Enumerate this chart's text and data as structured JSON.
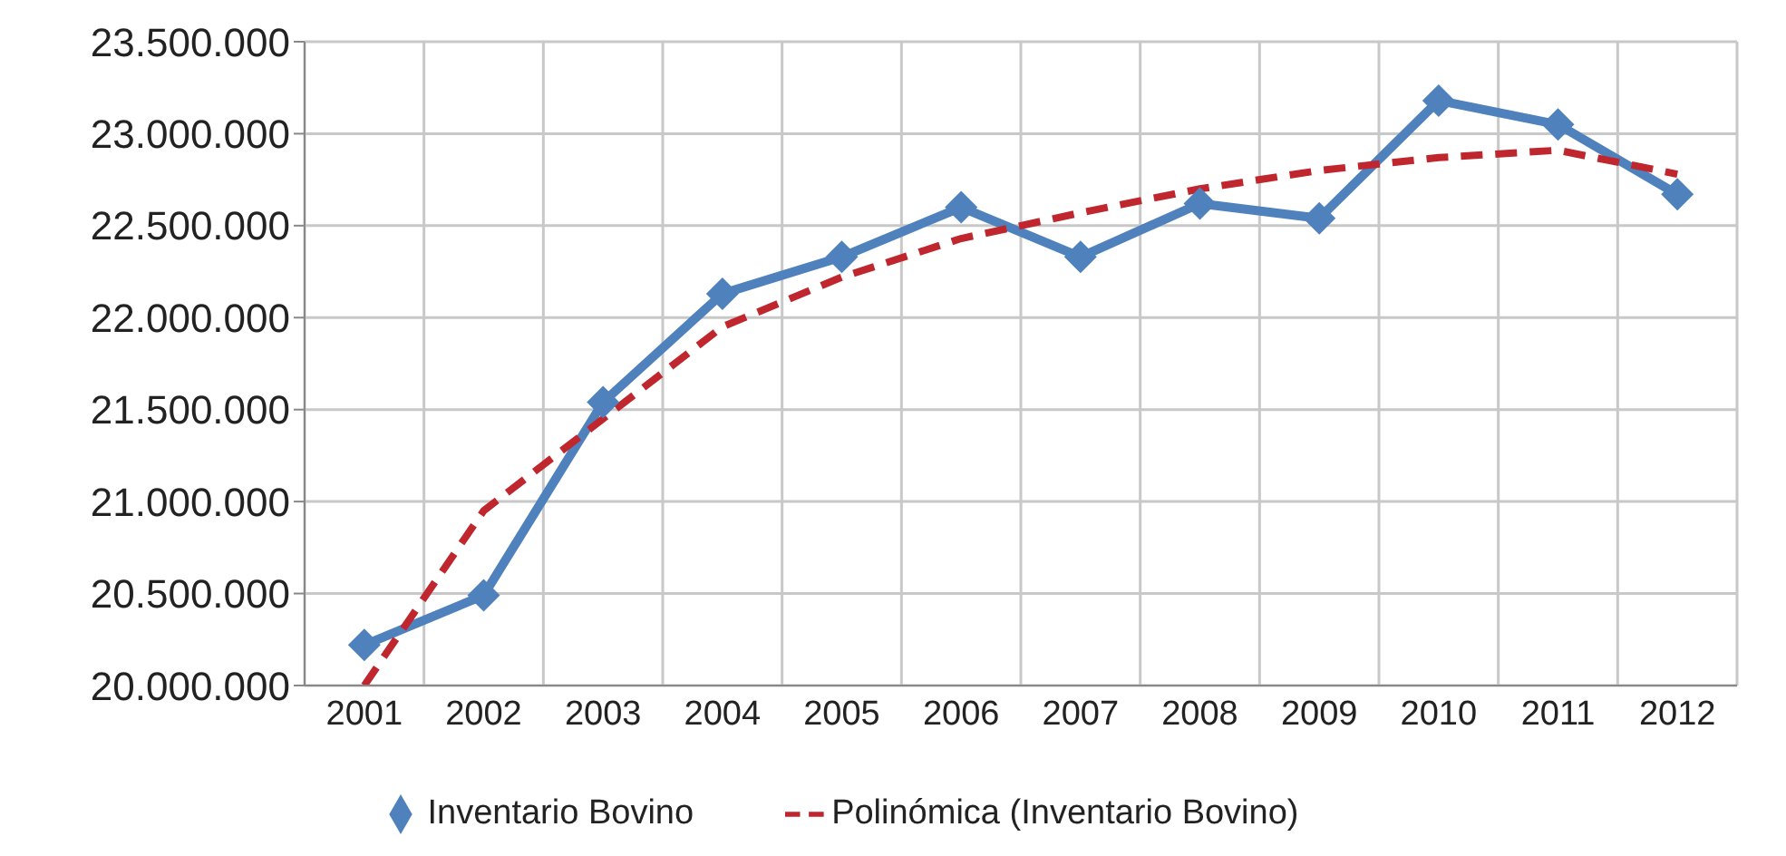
{
  "chart_data": {
    "type": "line",
    "categories": [
      "2001",
      "2002",
      "2003",
      "2004",
      "2005",
      "2006",
      "2007",
      "2008",
      "2009",
      "2010",
      "2011",
      "2012"
    ],
    "series": [
      {
        "name": "Inventario Bovino",
        "color": "#4f81bd",
        "marker": "diamond",
        "line_style": "solid",
        "values": [
          20220000,
          20490000,
          21540000,
          22130000,
          22330000,
          22600000,
          22330000,
          22620000,
          22540000,
          23180000,
          23050000,
          22670000
        ]
      },
      {
        "name": "Polinómica (Inventario Bovino)",
        "color": "#c0262d",
        "marker": "none",
        "line_style": "dashed",
        "values": [
          20000000,
          20950000,
          21450000,
          21950000,
          22220000,
          22430000,
          22570000,
          22700000,
          22800000,
          22870000,
          22910000,
          22780000
        ]
      }
    ],
    "ylim": [
      20000000,
      23500000
    ],
    "yticks": [
      {
        "value": 20000000,
        "label": "20.000.000"
      },
      {
        "value": 20500000,
        "label": "20.500.000"
      },
      {
        "value": 21000000,
        "label": "21.000.000"
      },
      {
        "value": 21500000,
        "label": "21.500.000"
      },
      {
        "value": 22000000,
        "label": "22.000.000"
      },
      {
        "value": 22500000,
        "label": "22.500.000"
      },
      {
        "value": 23000000,
        "label": "23.000.000"
      },
      {
        "value": 23500000,
        "label": "23.500.000"
      }
    ],
    "grid": true,
    "legend": "bottom"
  }
}
